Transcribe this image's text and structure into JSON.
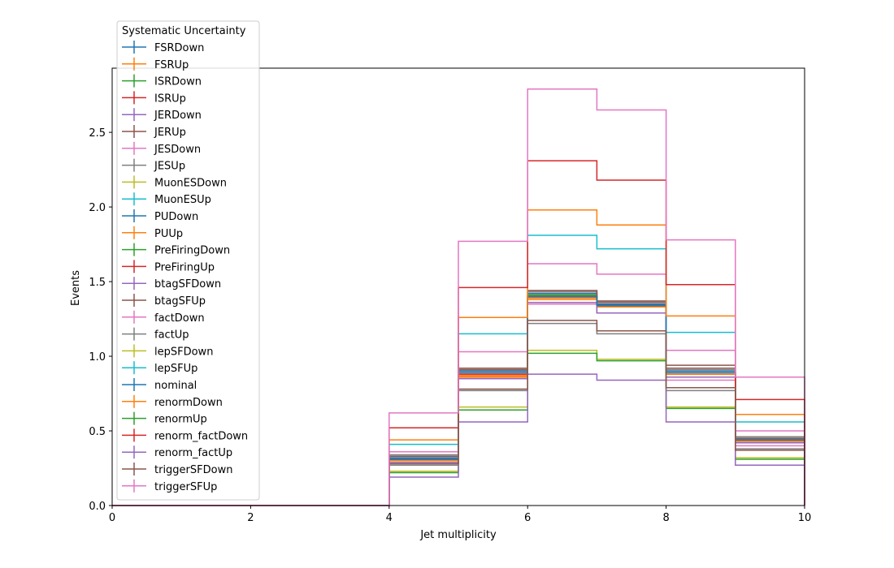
{
  "chart_data": {
    "type": "step",
    "xlabel": "Jet multiplicity",
    "ylabel": "Events",
    "xlim": [
      0,
      10
    ],
    "ylim": [
      0,
      2.93
    ],
    "x_ticks": [
      "0",
      "2",
      "4",
      "6",
      "8",
      "10"
    ],
    "y_ticks": [
      "0.0",
      "0.5",
      "1.0",
      "1.5",
      "2.0",
      "2.5"
    ],
    "bin_edges": [
      0,
      1,
      2,
      3,
      4,
      5,
      6,
      7,
      8,
      9,
      10
    ],
    "legend_title": "Systematic Uncertainty",
    "legend_position": "upper-left",
    "series": [
      {
        "name": "FSRDown",
        "color": "#1f77b4",
        "values": [
          0,
          0,
          0,
          0,
          0.31,
          0.89,
          1.41,
          1.34,
          0.89,
          0.44
        ]
      },
      {
        "name": "FSRUp",
        "color": "#ff7f0e",
        "values": [
          0,
          0,
          0,
          0,
          0.31,
          0.86,
          1.38,
          1.33,
          0.88,
          0.43
        ]
      },
      {
        "name": "ISRDown",
        "color": "#2ca02c",
        "values": [
          0,
          0,
          0,
          0,
          0.3,
          0.89,
          1.4,
          1.33,
          0.89,
          0.44
        ]
      },
      {
        "name": "ISRUp",
        "color": "#d62728",
        "values": [
          0,
          0,
          0,
          0,
          0.31,
          0.87,
          1.39,
          1.35,
          0.88,
          0.45
        ]
      },
      {
        "name": "JERDown",
        "color": "#9467bd",
        "values": [
          0,
          0,
          0,
          0,
          0.3,
          0.88,
          1.4,
          1.34,
          0.89,
          0.43
        ]
      },
      {
        "name": "JERUp",
        "color": "#8c564b",
        "values": [
          0,
          0,
          0,
          0,
          0.32,
          0.92,
          1.44,
          1.36,
          0.94,
          0.46
        ]
      },
      {
        "name": "JESDown",
        "color": "#e377c2",
        "values": [
          0,
          0,
          0,
          0,
          0.27,
          0.85,
          1.35,
          1.29,
          0.84,
          0.4
        ]
      },
      {
        "name": "JESUp",
        "color": "#7f7f7f",
        "values": [
          0,
          0,
          0,
          0,
          0.34,
          0.91,
          1.43,
          1.37,
          0.91,
          0.46
        ]
      },
      {
        "name": "MuonESDown",
        "color": "#bcbd22",
        "values": [
          0,
          0,
          0,
          0,
          0.3,
          0.88,
          1.41,
          1.33,
          0.89,
          0.44
        ]
      },
      {
        "name": "MuonESUp",
        "color": "#17becf",
        "values": [
          0,
          0,
          0,
          0,
          0.31,
          0.89,
          1.4,
          1.34,
          0.89,
          0.44
        ]
      },
      {
        "name": "PUDown",
        "color": "#1f77b4",
        "values": [
          0,
          0,
          0,
          0,
          0.32,
          0.9,
          1.42,
          1.35,
          0.9,
          0.44
        ]
      },
      {
        "name": "PUUp",
        "color": "#ff7f0e",
        "values": [
          0,
          0,
          0,
          0,
          0.3,
          0.87,
          1.39,
          1.33,
          0.88,
          0.43
        ]
      },
      {
        "name": "PreFiringDown",
        "color": "#2ca02c",
        "values": [
          0,
          0,
          0,
          0,
          0.31,
          0.89,
          1.41,
          1.34,
          0.89,
          0.44
        ]
      },
      {
        "name": "PreFiringUp",
        "color": "#d62728",
        "values": [
          0,
          0,
          0,
          0,
          0.31,
          0.88,
          1.4,
          1.34,
          0.89,
          0.44
        ]
      },
      {
        "name": "btagSFDown",
        "color": "#9467bd",
        "values": [
          0,
          0,
          0,
          0,
          0.29,
          0.85,
          1.36,
          1.29,
          0.86,
          0.42
        ]
      },
      {
        "name": "btagSFUp",
        "color": "#8c564b",
        "values": [
          0,
          0,
          0,
          0,
          0.33,
          0.91,
          1.44,
          1.37,
          0.92,
          0.45
        ]
      },
      {
        "name": "factDown",
        "color": "#e377c2",
        "values": [
          0,
          0,
          0,
          0,
          0.36,
          1.03,
          1.62,
          1.55,
          1.04,
          0.5
        ]
      },
      {
        "name": "factUp",
        "color": "#7f7f7f",
        "values": [
          0,
          0,
          0,
          0,
          0.27,
          0.77,
          1.22,
          1.15,
          0.77,
          0.38
        ]
      },
      {
        "name": "lepSFDown",
        "color": "#bcbd22",
        "values": [
          0,
          0,
          0,
          0,
          0.23,
          0.66,
          1.04,
          0.98,
          0.66,
          0.32
        ]
      },
      {
        "name": "lepSFUp",
        "color": "#17becf",
        "values": [
          0,
          0,
          0,
          0,
          0.41,
          1.15,
          1.81,
          1.72,
          1.16,
          0.56
        ]
      },
      {
        "name": "nominal",
        "color": "#1f77b4",
        "values": [
          0,
          0,
          0,
          0,
          0.31,
          0.89,
          1.4,
          1.34,
          0.89,
          0.44
        ]
      },
      {
        "name": "renormDown",
        "color": "#ff7f0e",
        "values": [
          0,
          0,
          0,
          0,
          0.44,
          1.26,
          1.98,
          1.88,
          1.27,
          0.61
        ]
      },
      {
        "name": "renormUp",
        "color": "#2ca02c",
        "values": [
          0,
          0,
          0,
          0,
          0.22,
          0.64,
          1.02,
          0.97,
          0.65,
          0.31
        ]
      },
      {
        "name": "renorm_factDown",
        "color": "#d62728",
        "values": [
          0,
          0,
          0,
          0,
          0.52,
          1.46,
          2.31,
          2.18,
          1.48,
          0.71
        ]
      },
      {
        "name": "renorm_factUp",
        "color": "#9467bd",
        "values": [
          0,
          0,
          0,
          0,
          0.19,
          0.56,
          0.88,
          0.84,
          0.56,
          0.27
        ]
      },
      {
        "name": "triggerSFDown",
        "color": "#8c564b",
        "values": [
          0,
          0,
          0,
          0,
          0.28,
          0.78,
          1.24,
          1.17,
          0.79,
          0.37
        ]
      },
      {
        "name": "triggerSFUp",
        "color": "#e377c2",
        "values": [
          0,
          0,
          0,
          0,
          0.62,
          1.77,
          2.79,
          2.65,
          1.78,
          0.86
        ]
      }
    ]
  }
}
